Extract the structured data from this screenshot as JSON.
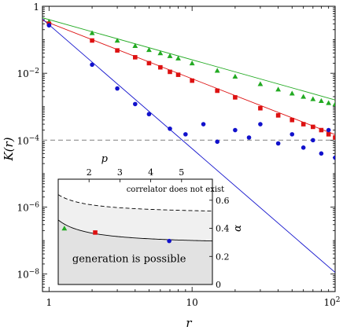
{
  "chart_data": [
    {
      "type": "scatter",
      "title": "",
      "xlabel": "r",
      "ylabel": "K(r)",
      "xscale": "log",
      "yscale": "log",
      "xlim": [
        0.9,
        100
      ],
      "ylim": [
        3e-09,
        1
      ],
      "xticks": [
        {
          "v": 1,
          "label": "1"
        },
        {
          "v": 10,
          "label": "10"
        },
        {
          "v": 100,
          "label": "10",
          "sup": "2"
        }
      ],
      "yticks": [
        {
          "v": 1,
          "label": "1",
          "sup": ""
        },
        {
          "v": 0.01,
          "label": "10",
          "sup": "−2"
        },
        {
          "v": 0.0001,
          "label": "10",
          "sup": "−4"
        },
        {
          "v": 1e-06,
          "label": "10",
          "sup": "−6"
        },
        {
          "v": 1e-08,
          "label": "10",
          "sup": "−8"
        }
      ],
      "grid": false,
      "reference_line": {
        "y": 0.0001,
        "style": "dashed",
        "color": "#999999"
      },
      "series": [
        {
          "marker": "triangle",
          "color": "#22aa22",
          "fit": {
            "slope": -1.2,
            "intercept": 0.4
          },
          "x": [
            1,
            2,
            3,
            4,
            5,
            6,
            7,
            8,
            10,
            15,
            20,
            30,
            40,
            50,
            60,
            70,
            80,
            90,
            100
          ],
          "y": [
            0.35,
            0.16,
            0.095,
            0.066,
            0.05,
            0.04,
            0.033,
            0.028,
            0.02,
            0.012,
            0.008,
            0.0048,
            0.0033,
            0.0025,
            0.002,
            0.0017,
            0.0015,
            0.0013,
            0.0012
          ]
        },
        {
          "marker": "square",
          "color": "#dd1111",
          "fit": {
            "slope": -1.67,
            "intercept": 0.32
          },
          "x": [
            1,
            2,
            3,
            4,
            5,
            6,
            7,
            8,
            10,
            15,
            20,
            30,
            40,
            50,
            60,
            70,
            80,
            90,
            100
          ],
          "y": [
            0.3,
            0.095,
            0.048,
            0.03,
            0.02,
            0.015,
            0.011,
            0.009,
            0.006,
            0.003,
            0.0019,
            0.0009,
            0.00055,
            0.0004,
            0.0003,
            0.00025,
            0.0002,
            0.00015,
            0.00012
          ]
        },
        {
          "marker": "circle",
          "color": "#1111cc",
          "fit": {
            "slope": -3.7,
            "intercept": 0.28
          },
          "x": [
            1,
            2,
            3,
            4,
            5,
            7,
            9,
            12,
            15,
            20,
            25,
            30,
            40,
            50,
            60,
            70,
            80,
            90,
            100
          ],
          "y": [
            0.27,
            0.018,
            0.0035,
            0.0012,
            0.0006,
            0.00022,
            0.00015,
            0.0003,
            9e-05,
            0.0002,
            0.00012,
            0.0003,
            8e-05,
            0.00015,
            6e-05,
            0.0001,
            4e-05,
            0.0002,
            3e-05
          ]
        }
      ]
    },
    {
      "type": "scatter",
      "title": "",
      "xlabel": "p",
      "ylabel": "α",
      "xlim": [
        1,
        6
      ],
      "ylim": [
        0,
        0.75
      ],
      "xticks": [
        2,
        3,
        4,
        5
      ],
      "yticks": [
        0,
        0.2,
        0.4,
        0.6
      ],
      "regions": [
        {
          "label": "correlator does not exist",
          "boundary": "dashed"
        },
        {
          "label": "generation is possible",
          "boundary": "solid"
        }
      ],
      "points": [
        {
          "p": 1.2,
          "alpha": 0.4,
          "marker": "triangle",
          "color": "#22aa22"
        },
        {
          "p": 2.2,
          "alpha": 0.37,
          "marker": "square",
          "color": "#dd1111"
        },
        {
          "p": 4.6,
          "alpha": 0.31,
          "marker": "circle",
          "color": "#1111cc"
        }
      ]
    }
  ]
}
